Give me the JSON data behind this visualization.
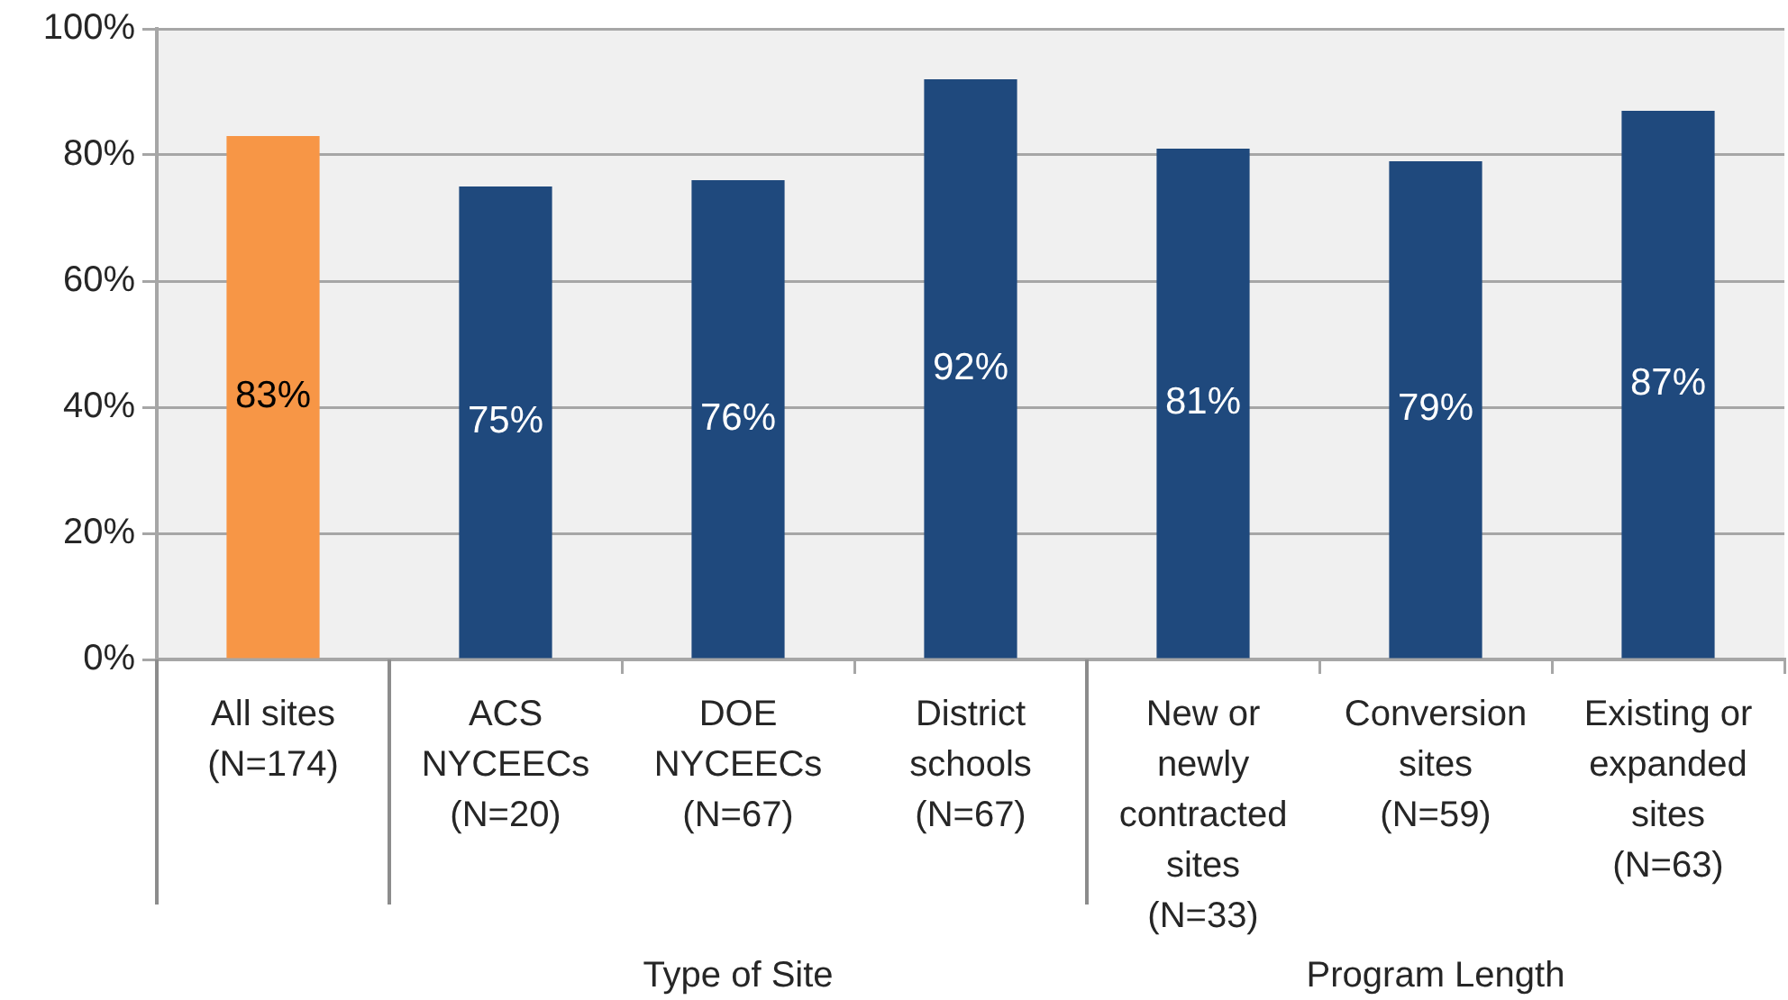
{
  "chart_data": {
    "type": "bar",
    "categories": [
      "All sites (N=174)",
      "ACS NYCEECs (N=20)",
      "DOE NYCEECs (N=67)",
      "District schools (N=67)",
      "New or newly contracted sites (N=33)",
      "Conversion sites (N=59)",
      "Existing or expanded sites (N=63)"
    ],
    "values": [
      83,
      75,
      76,
      92,
      81,
      79,
      87
    ],
    "colors": [
      "#f79646",
      "#1f497d",
      "#1f497d",
      "#1f497d",
      "#1f497d",
      "#1f497d",
      "#1f497d"
    ],
    "value_labels": [
      "83%",
      "75%",
      "76%",
      "92%",
      "81%",
      "79%",
      "87%"
    ],
    "ylim": [
      0,
      100
    ],
    "yticks": [
      {
        "value": 0,
        "label": "0%"
      },
      {
        "value": 20,
        "label": "20%"
      },
      {
        "value": 40,
        "label": "40%"
      },
      {
        "value": 60,
        "label": "60%"
      },
      {
        "value": 80,
        "label": "80%"
      },
      {
        "value": 100,
        "label": "100%"
      }
    ],
    "grid": "y",
    "annotations": [
      "Type of Site",
      "Program Length"
    ]
  }
}
